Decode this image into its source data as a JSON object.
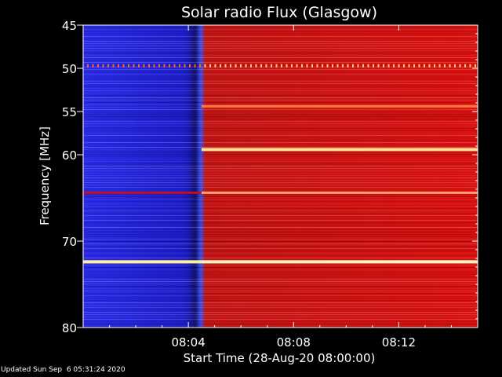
{
  "chart_data": {
    "type": "heatmap",
    "title": "Solar radio Flux (Glasgow)",
    "xlabel": "Start Time (28-Aug-20 08:00:00)",
    "ylabel": "Frequency [MHz]",
    "x_unit": "minutes after 08:00:00",
    "xlim": [
      0,
      15
    ],
    "ylim": [
      80,
      45
    ],
    "x_ticks": [
      {
        "value": 4,
        "label": "08:04"
      },
      {
        "value": 8,
        "label": "08:08"
      },
      {
        "value": 12,
        "label": "08:12"
      }
    ],
    "y_ticks": [
      {
        "value": 45,
        "label": "45"
      },
      {
        "value": 50,
        "label": "50"
      },
      {
        "value": 55,
        "label": "55"
      },
      {
        "value": 60,
        "label": "60"
      },
      {
        "value": 70,
        "label": "70"
      },
      {
        "value": 80,
        "label": "80"
      }
    ],
    "transition_minute": 4.5,
    "background_low": "#2a2ae6",
    "background_high": "#d81010",
    "bright_bands_mhz": [
      {
        "freq": 49.7,
        "start_min": 0,
        "level": "dotted"
      },
      {
        "freq": 54.4,
        "start_min": 4.5,
        "level": "high"
      },
      {
        "freq": 59.4,
        "start_min": 4.5,
        "level": "very-high"
      },
      {
        "freq": 64.4,
        "start_min": 0,
        "level": "high"
      },
      {
        "freq": 72.4,
        "start_min": 0,
        "level": "very-high"
      }
    ],
    "colors": {
      "frame": "#ffffff",
      "background": "#000000",
      "band": "#ffd080"
    }
  },
  "footer": "Updated Sun Sep  6 05:31:24 2020"
}
